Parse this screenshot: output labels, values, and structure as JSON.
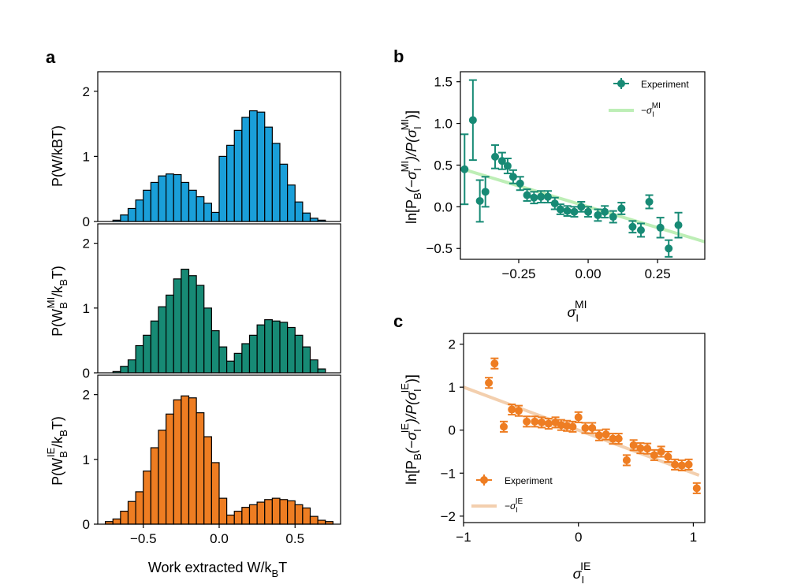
{
  "colors": {
    "blue": "#1a9fd9",
    "teal": "#178a75",
    "orange": "#ee7d22",
    "teal_fit": "#bdeeb6",
    "orange_fit": "#f3cfae"
  },
  "chart_data": [
    {
      "id": "a1",
      "type": "bar",
      "panel_label": "a",
      "ylabel": "P(W/kBT)",
      "yticks": [
        0,
        1,
        2
      ],
      "ylim": [
        0,
        2.3
      ],
      "xlim": [
        -0.8,
        0.8
      ],
      "bin_width": 0.05,
      "bin_starts": [
        -0.7,
        -0.65,
        -0.6,
        -0.55,
        -0.5,
        -0.45,
        -0.4,
        -0.35,
        -0.3,
        -0.25,
        -0.2,
        -0.15,
        -0.1,
        -0.05,
        0.0,
        0.05,
        0.1,
        0.15,
        0.2,
        0.25,
        0.3,
        0.35,
        0.4,
        0.45,
        0.5,
        0.55,
        0.6,
        0.65
      ],
      "values": [
        0.02,
        0.1,
        0.2,
        0.33,
        0.48,
        0.6,
        0.7,
        0.73,
        0.72,
        0.6,
        0.48,
        0.38,
        0.28,
        0.14,
        1.0,
        1.17,
        1.4,
        1.6,
        1.7,
        1.68,
        1.45,
        1.2,
        0.88,
        0.56,
        0.3,
        0.13,
        0.05,
        0.02
      ]
    },
    {
      "id": "a2",
      "type": "bar",
      "ylabel": "P(W",
      "ylabel_sub": "B",
      "ylabel_sup": "MI",
      "ylabel_tail": "/k",
      "ylabel_tail_sub": "B",
      "ylabel_end": "T)",
      "yticks": [
        0,
        1,
        2
      ],
      "ylim": [
        0,
        2.3
      ],
      "xlim": [
        -0.8,
        0.8
      ],
      "bin_width": 0.05,
      "bin_starts": [
        -0.7,
        -0.65,
        -0.6,
        -0.55,
        -0.5,
        -0.45,
        -0.4,
        -0.35,
        -0.3,
        -0.25,
        -0.2,
        -0.15,
        -0.1,
        -0.05,
        0.0,
        0.05,
        0.1,
        0.15,
        0.2,
        0.25,
        0.3,
        0.35,
        0.4,
        0.45,
        0.5,
        0.55,
        0.6,
        0.65
      ],
      "values": [
        0.02,
        0.1,
        0.2,
        0.42,
        0.58,
        0.8,
        1.02,
        1.2,
        1.45,
        1.6,
        1.5,
        1.35,
        1.0,
        0.65,
        0.4,
        0.18,
        0.3,
        0.45,
        0.58,
        0.74,
        0.82,
        0.8,
        0.78,
        0.7,
        0.58,
        0.4,
        0.2,
        0.06
      ]
    },
    {
      "id": "a3",
      "type": "bar",
      "ylabel": "P(W",
      "ylabel_sub": "B",
      "ylabel_sup": "IE",
      "ylabel_tail": "/k",
      "ylabel_tail_sub": "B",
      "ylabel_end": "T)",
      "yticks": [
        0,
        1,
        2
      ],
      "ylim": [
        0,
        2.3
      ],
      "xlim": [
        -0.8,
        0.8
      ],
      "xticks": [
        -0.5,
        0.0,
        0.5
      ],
      "xticklabels": [
        "−0.5",
        "0.0",
        "0.5"
      ],
      "xlabel": "Work extracted W/k",
      "xlabel_sub": "B",
      "xlabel_end": "T",
      "bin_width": 0.05,
      "bin_starts": [
        -0.75,
        -0.7,
        -0.65,
        -0.6,
        -0.55,
        -0.5,
        -0.45,
        -0.4,
        -0.35,
        -0.3,
        -0.25,
        -0.2,
        -0.15,
        -0.1,
        -0.05,
        0.0,
        0.05,
        0.1,
        0.15,
        0.2,
        0.25,
        0.3,
        0.35,
        0.4,
        0.45,
        0.5,
        0.55,
        0.6,
        0.65,
        0.7
      ],
      "values": [
        0.04,
        0.08,
        0.2,
        0.35,
        0.5,
        0.82,
        1.18,
        1.45,
        1.7,
        1.92,
        1.98,
        1.95,
        1.72,
        1.35,
        0.95,
        0.4,
        0.14,
        0.2,
        0.26,
        0.3,
        0.34,
        0.38,
        0.4,
        0.38,
        0.36,
        0.3,
        0.25,
        0.12,
        0.06,
        0.04
      ]
    },
    {
      "id": "b",
      "type": "scatter",
      "panel_label": "b",
      "xlim": [
        -0.46,
        0.42
      ],
      "ylim": [
        -0.63,
        1.62
      ],
      "xticks": [
        -0.25,
        0.0,
        0.25
      ],
      "xticklabels": [
        "−0.25",
        "0.00",
        "0.25"
      ],
      "yticks": [
        -0.5,
        0.0,
        0.5,
        1.0,
        1.5
      ],
      "yticklabels": [
        "−0.5",
        "0.0",
        "0.5",
        "1.0",
        "1.5"
      ],
      "xlabel": "σ",
      "xlabel_sub": "I",
      "xlabel_sup": "MI",
      "ylabel": "ln[P",
      "ylabel_sub": "B",
      "ylabel_mid": "(−σ",
      "ylabel_mid_sub": "I",
      "ylabel_mid_sup": "MI",
      "ylabel_mid2": ")/P(σ",
      "ylabel_mid2_sub": "I",
      "ylabel_mid2_sup": "MI",
      "ylabel_end": ")]",
      "legend": {
        "position": "top-right",
        "series_label": "Experiment",
        "fit_label": "−σ",
        "fit_sub": "I",
        "fit_sup": "MI"
      },
      "fit": {
        "x": [
          -0.46,
          0.42
        ],
        "y": [
          0.46,
          -0.42
        ]
      },
      "x": [
        -0.445,
        -0.415,
        -0.39,
        -0.37,
        -0.335,
        -0.31,
        -0.29,
        -0.27,
        -0.245,
        -0.22,
        -0.195,
        -0.17,
        -0.145,
        -0.12,
        -0.1,
        -0.075,
        -0.05,
        -0.025,
        0.0,
        0.035,
        0.06,
        0.09,
        0.12,
        0.16,
        0.19,
        0.22,
        0.26,
        0.29,
        0.325
      ],
      "y": [
        0.45,
        1.04,
        0.07,
        0.18,
        0.6,
        0.55,
        0.49,
        0.36,
        0.28,
        0.14,
        0.11,
        0.12,
        0.12,
        0.04,
        -0.03,
        -0.05,
        -0.06,
        0.0,
        -0.06,
        -0.1,
        -0.06,
        -0.12,
        -0.02,
        -0.24,
        -0.28,
        0.06,
        -0.25,
        -0.5,
        -0.22
      ],
      "yerr": [
        0.42,
        0.48,
        0.25,
        0.18,
        0.14,
        0.1,
        0.09,
        0.08,
        0.08,
        0.07,
        0.07,
        0.07,
        0.07,
        0.07,
        0.06,
        0.06,
        0.06,
        0.06,
        0.06,
        0.07,
        0.07,
        0.07,
        0.07,
        0.07,
        0.08,
        0.08,
        0.12,
        0.1,
        0.15
      ]
    },
    {
      "id": "c",
      "type": "scatter",
      "panel_label": "c",
      "xlim": [
        -1.0,
        1.1
      ],
      "ylim": [
        -2.15,
        2.25
      ],
      "xticks": [
        -1,
        0,
        1
      ],
      "xticklabels": [
        "−1",
        "0",
        "1"
      ],
      "yticks": [
        -2,
        -1,
        0,
        1,
        2
      ],
      "yticklabels": [
        "−2",
        "−1",
        "0",
        "1",
        "2"
      ],
      "xlabel": "σ",
      "xlabel_sub": "I",
      "xlabel_sup": "IE",
      "ylabel": "ln[P",
      "ylabel_sub": "B",
      "ylabel_mid": "(−σ",
      "ylabel_mid_sub": "I",
      "ylabel_mid_sup": "IE",
      "ylabel_mid2": ")/P(σ",
      "ylabel_mid2_sub": "I",
      "ylabel_mid2_sup": "IE",
      "ylabel_end": ")]",
      "legend": {
        "position": "bottom-left",
        "series_label": "Experiment",
        "fit_label": "−σ",
        "fit_sub": "I",
        "fit_sup": "IE"
      },
      "fit": {
        "x": [
          -1.0,
          1.05
        ],
        "y": [
          1.0,
          -1.05
        ]
      },
      "x": [
        -0.78,
        -0.73,
        -0.65,
        -0.58,
        -0.52,
        -0.45,
        -0.38,
        -0.32,
        -0.26,
        -0.2,
        -0.15,
        -0.1,
        -0.05,
        0.0,
        0.06,
        0.12,
        0.18,
        0.24,
        0.3,
        0.35,
        0.42,
        0.48,
        0.54,
        0.6,
        0.66,
        0.72,
        0.78,
        0.84,
        0.9,
        0.96,
        1.03
      ],
      "y": [
        1.1,
        1.55,
        0.08,
        0.48,
        0.45,
        0.2,
        0.2,
        0.18,
        0.15,
        0.18,
        0.12,
        0.1,
        0.08,
        0.3,
        0.05,
        0.05,
        -0.12,
        -0.1,
        -0.2,
        -0.2,
        -0.7,
        -0.35,
        -0.42,
        -0.43,
        -0.58,
        -0.5,
        -0.62,
        -0.8,
        -0.82,
        -0.8,
        -1.35
      ]
    }
  ]
}
